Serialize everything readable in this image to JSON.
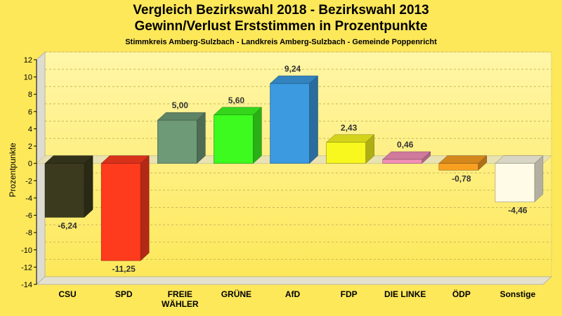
{
  "chart_data": {
    "type": "bar",
    "title": "Vergleich Bezirkswahl 2018 - Bezirkswahl 2013",
    "subtitle": "Gewinn/Verlust Erststimmen in Prozentpunkte",
    "subtitle2": "Stimmkreis Amberg-Sulzbach - Landkreis Amberg-Sulzbach - Gemeinde Poppenricht",
    "ylabel": "Prozentpunkte",
    "ylim": [
      -14,
      12
    ],
    "yticks": [
      -14,
      -12,
      -10,
      -8,
      -6,
      -4,
      -2,
      0,
      2,
      4,
      6,
      8,
      10,
      12
    ],
    "grid": true,
    "categories": [
      "CSU",
      "SPD",
      "FREIE WÄHLER",
      "GRÜNE",
      "AfD",
      "FDP",
      "DIE LINKE",
      "ÖDP",
      "Sonstige"
    ],
    "values": [
      -6.24,
      -11.25,
      5.0,
      5.6,
      9.24,
      2.43,
      0.46,
      -0.78,
      -4.46
    ],
    "labels": [
      "-6,24",
      "-11,25",
      "5,00",
      "5,60",
      "9,24",
      "2,43",
      "0,46",
      "-0,78",
      "-4,46"
    ],
    "colors": [
      "#3b3a1e",
      "#ff3b1e",
      "#6f9a78",
      "#3dfa1f",
      "#3b9ae0",
      "#f8f81e",
      "#f490b8",
      "#f9a021",
      "#fffbe6"
    ]
  }
}
